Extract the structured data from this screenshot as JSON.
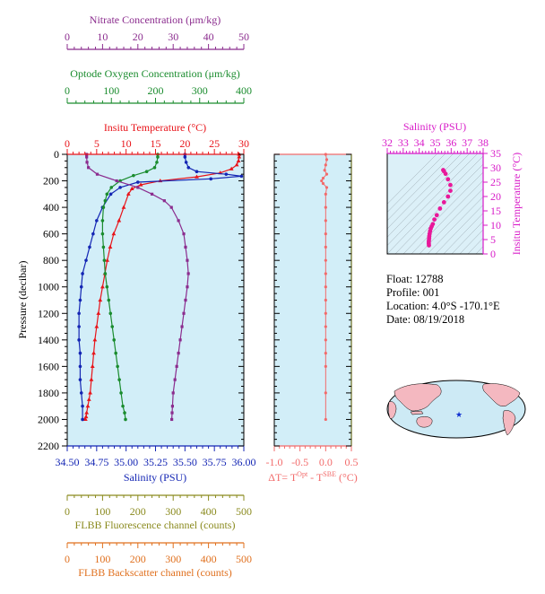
{
  "axes": {
    "nitrate": {
      "label": "Nitrate Concentration (μm/kg)",
      "ticks": [
        "0",
        "10",
        "20",
        "30",
        "40",
        "50"
      ],
      "range": [
        0,
        50
      ],
      "color": "#8b2c8e"
    },
    "oxygen": {
      "label": "Optode Oxygen Concentration (μm/kg)",
      "ticks": [
        "0",
        "100",
        "200",
        "300",
        "400"
      ],
      "range": [
        0,
        400
      ],
      "color": "#1a8c2e"
    },
    "temperature": {
      "label": "Insitu Temperature (°C)",
      "ticks": [
        "0",
        "5",
        "10",
        "15",
        "20",
        "25",
        "30"
      ],
      "range": [
        0,
        30
      ],
      "color": "#e8141a"
    },
    "pressure": {
      "label": "Pressure (decibar)",
      "ticks": [
        "0",
        "200",
        "400",
        "600",
        "800",
        "1000",
        "1200",
        "1400",
        "1600",
        "1800",
        "2000",
        "2200"
      ],
      "range": [
        0,
        2200
      ]
    },
    "salinity": {
      "label": "Salinity (PSU)",
      "ticks": [
        "34.50",
        "34.75",
        "35.00",
        "35.25",
        "35.50",
        "35.75",
        "36.00"
      ],
      "range": [
        34.5,
        36.0
      ],
      "color": "#1426b4"
    },
    "fluorescence": {
      "label": "FLBB Fluorescence channel (counts)",
      "ticks": [
        "0",
        "100",
        "200",
        "300",
        "400",
        "500"
      ],
      "range": [
        0,
        500
      ],
      "color": "#8a8a1e"
    },
    "backscatter": {
      "label": "FLBB Backscatter channel (counts)",
      "ticks": [
        "0",
        "100",
        "200",
        "300",
        "400",
        "500"
      ],
      "range": [
        0,
        500
      ],
      "color": "#e0701e"
    },
    "deltaT": {
      "ticks": [
        "-1.0",
        "-0.5",
        "0.0",
        "0.5"
      ],
      "range": [
        -1.0,
        0.5
      ],
      "color": "#f26b6b",
      "label_base": "ΔT= T",
      "label_sup1": "Opt",
      "label_mid": " - T",
      "label_sup2": "SBE",
      "label_end": " (°C)"
    },
    "ts_salinity": {
      "label": "Salinity (PSU)",
      "ticks": [
        "32",
        "33",
        "34",
        "35",
        "36",
        "37",
        "38"
      ],
      "range": [
        32,
        38
      ],
      "color": "#d81bc8"
    },
    "ts_temperature": {
      "label": "Insitu Temperature (°C)",
      "ticks": [
        "0",
        "5",
        "10",
        "15",
        "20",
        "25",
        "30",
        "35"
      ],
      "range": [
        0,
        35
      ],
      "color": "#d81bc8"
    }
  },
  "info": {
    "float": "Float:  12788",
    "profile": "Profile:  001",
    "location": "Location:  4.0°S  -170.1°E",
    "date": "Date:  08/19/2018"
  },
  "colors": {
    "plot_bg": "#d2eef8",
    "ts_bg": "#dcf0f8",
    "ts_points": "#e8189a",
    "map_land": "#f4b8c0",
    "map_ocean": "#cdeaf5",
    "float_marker": "#1030d0"
  },
  "chart_data": [
    {
      "type": "line",
      "y_name": "pressure",
      "ylim": [
        0,
        2200
      ],
      "y_reversed": true,
      "grid": false,
      "series": [
        {
          "axis": "temperature",
          "color": "#e8141a",
          "marker": "triangle",
          "x": [
            29.2,
            29.2,
            29.1,
            28.8,
            27.9,
            26.0,
            22.0,
            15.8,
            12.5,
            11.0,
            10.4,
            9.6,
            8.8,
            7.9,
            7.3,
            6.8,
            6.4,
            6.0,
            5.6,
            5.3,
            5.0,
            4.7,
            4.5,
            4.3,
            4.1,
            3.9,
            3.7,
            3.5,
            3.3,
            3.2,
            3.1,
            3.0
          ],
          "y": [
            0,
            20,
            50,
            80,
            110,
            140,
            170,
            200,
            230,
            260,
            300,
            400,
            500,
            600,
            700,
            800,
            900,
            1000,
            1100,
            1200,
            1300,
            1400,
            1500,
            1600,
            1700,
            1800,
            1850,
            1900,
            1950,
            1980,
            2000,
            2000
          ]
        },
        {
          "axis": "salinity",
          "color": "#1426b4",
          "marker": "circle",
          "x": [
            35.5,
            35.5,
            35.51,
            35.53,
            35.6,
            35.85,
            35.98,
            35.72,
            35.1,
            34.95,
            34.87,
            34.8,
            34.75,
            34.72,
            34.69,
            34.66,
            34.63,
            34.62,
            34.61,
            34.6,
            34.6,
            34.6,
            34.61,
            34.61,
            34.61,
            34.62,
            34.63,
            34.63
          ],
          "y": [
            0,
            20,
            60,
            100,
            130,
            150,
            165,
            185,
            210,
            250,
            300,
            400,
            500,
            600,
            700,
            800,
            900,
            1000,
            1100,
            1200,
            1300,
            1400,
            1500,
            1600,
            1700,
            1800,
            1900,
            2000
          ]
        },
        {
          "axis": "oxygen",
          "color": "#1a8c2e",
          "marker": "circle",
          "x": [
            205,
            205,
            203,
            198,
            180,
            150,
            120,
            100,
            90,
            86,
            82,
            80,
            80,
            82,
            84,
            86,
            90,
            94,
            98,
            102,
            106,
            110,
            114,
            118,
            122,
            126,
            130,
            132
          ],
          "y": [
            0,
            20,
            60,
            100,
            130,
            160,
            200,
            250,
            300,
            350,
            400,
            500,
            600,
            700,
            800,
            900,
            1000,
            1100,
            1200,
            1300,
            1400,
            1500,
            1600,
            1700,
            1800,
            1900,
            1950,
            2000
          ]
        },
        {
          "axis": "nitrate",
          "color": "#8b2c8e",
          "marker": "square",
          "x": [
            5.5,
            5.5,
            5.6,
            6.0,
            8.5,
            14.0,
            20.0,
            24.0,
            27.5,
            29.5,
            31.5,
            33.0,
            33.5,
            34.0,
            34.3,
            34.0,
            33.5,
            33.0,
            32.5,
            32.0,
            31.5,
            31.0,
            30.5,
            30.0,
            29.8,
            29.7,
            29.6
          ],
          "y": [
            0,
            20,
            60,
            100,
            150,
            200,
            250,
            300,
            350,
            400,
            500,
            600,
            700,
            800,
            900,
            1000,
            1100,
            1200,
            1300,
            1400,
            1500,
            1600,
            1700,
            1800,
            1900,
            1950,
            2000
          ]
        }
      ]
    },
    {
      "type": "scatter",
      "x_name": "ΔT",
      "xlim": [
        -1.0,
        0.5
      ],
      "ylim": [
        0,
        2200
      ],
      "series": [
        {
          "color": "#f26b6b",
          "x": [
            0.0,
            0.02,
            0.0,
            -0.02,
            0.02,
            -0.05,
            -0.08,
            -0.05,
            0.02,
            0.0,
            0.0,
            0.0,
            0.0,
            0.0,
            0.0,
            0.0,
            0.0,
            0.0,
            0.0,
            0.0,
            0.0,
            0.0,
            0.0,
            0.0,
            0.0
          ],
          "y": [
            0,
            40,
            80,
            120,
            150,
            180,
            200,
            220,
            250,
            300,
            400,
            500,
            600,
            700,
            800,
            900,
            1000,
            1100,
            1200,
            1300,
            1400,
            1500,
            1600,
            1800,
            2000
          ]
        }
      ]
    },
    {
      "type": "scatter",
      "x_name": "salinity",
      "y_name": "temperature",
      "xlim": [
        32,
        38
      ],
      "ylim": [
        0,
        35
      ],
      "series": [
        {
          "color": "#e8189a",
          "x": [
            35.5,
            35.55,
            35.65,
            35.8,
            35.95,
            35.95,
            35.8,
            35.55,
            35.3,
            35.1,
            34.95,
            34.85,
            34.78,
            34.72,
            34.68,
            34.65,
            34.63,
            34.62,
            34.61,
            34.6,
            34.6,
            34.61
          ],
          "y": [
            29.2,
            28.8,
            27.9,
            26.0,
            24.0,
            22.0,
            20.0,
            18.0,
            15.8,
            13.5,
            12.0,
            10.4,
            9.6,
            8.8,
            7.9,
            7.0,
            6.2,
            5.5,
            4.8,
            4.2,
            3.6,
            3.0
          ]
        }
      ]
    }
  ]
}
